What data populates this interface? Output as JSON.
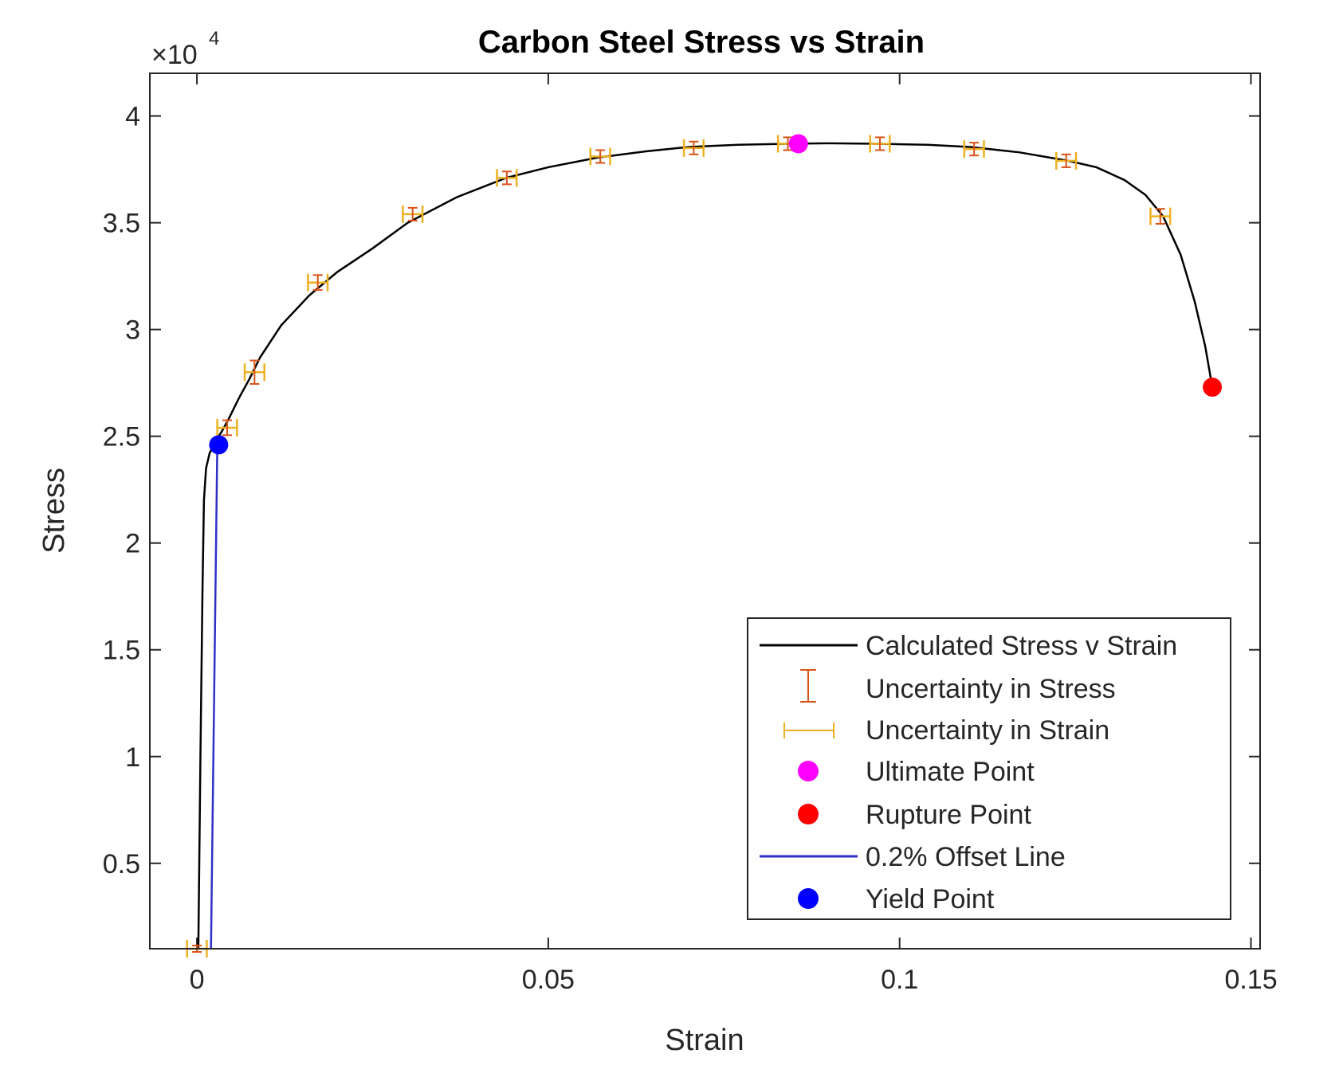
{
  "chart_data": {
    "type": "line",
    "title": "Carbon Steel Stress vs Strain",
    "xlabel": "Strain",
    "ylabel": "Stress",
    "y_exponent_label": "×10",
    "y_exponent_power": "4",
    "xlim": [
      -0.0067,
      0.1513
    ],
    "ylim": [
      1000,
      42000
    ],
    "x_ticks": [
      0,
      0.05,
      0.1,
      0.15
    ],
    "x_tick_labels": [
      "0",
      "0.05",
      "0.1",
      "0.15"
    ],
    "y_ticks": [
      5000,
      10000,
      15000,
      20000,
      25000,
      30000,
      35000,
      40000
    ],
    "y_tick_labels": [
      "0.5",
      "1",
      "1.5",
      "2",
      "2.5",
      "3",
      "3.5",
      "4"
    ],
    "grid": false,
    "legend_position": "bottom-right",
    "colors": {
      "curve": "#000000",
      "offset_line": "#3030c8",
      "stress_errorbar": "#d95319",
      "strain_errorbar": "#edb120",
      "ultimate": "#ff00ff",
      "rupture": "#ff0000",
      "yield": "#0000ff"
    },
    "series": [
      {
        "name": "Calculated Stress v Strain",
        "kind": "line",
        "x": [
          0.0002,
          0.0005,
          0.0008,
          0.001,
          0.0013,
          0.0018,
          0.0025,
          0.0035,
          0.0045,
          0.006,
          0.0075,
          0.009,
          0.012,
          0.016,
          0.02,
          0.025,
          0.03,
          0.037,
          0.044,
          0.05,
          0.057,
          0.064,
          0.07,
          0.077,
          0.084,
          0.09,
          0.097,
          0.104,
          0.11,
          0.117,
          0.124,
          0.128,
          0.132,
          0.135,
          0.1375,
          0.14,
          0.142,
          0.1435,
          0.1445
        ],
        "y": [
          1000,
          10000,
          18000,
          22000,
          23500,
          24200,
          24700,
          25200,
          25800,
          26800,
          27700,
          28700,
          30200,
          31600,
          32700,
          33800,
          35000,
          36200,
          37100,
          37600,
          38050,
          38350,
          38550,
          38650,
          38700,
          38720,
          38700,
          38650,
          38550,
          38300,
          37900,
          37600,
          37000,
          36300,
          35300,
          33500,
          31300,
          29200,
          27300
        ]
      },
      {
        "name": "Uncertainty in Stress",
        "kind": "yerror",
        "x": [
          0.0,
          0.0043,
          0.0082,
          0.0172,
          0.0307,
          0.0441,
          0.0574,
          0.0707,
          0.0841,
          0.0972,
          0.1106,
          0.1237,
          0.1371
        ],
        "y": [
          1000,
          25400,
          28000,
          32200,
          35400,
          37100,
          38100,
          38500,
          38700,
          38700,
          38450,
          37900,
          35300
        ],
        "err": [
          150,
          350,
          550,
          350,
          300,
          300,
          300,
          300,
          300,
          300,
          300,
          300,
          350
        ]
      },
      {
        "name": "Uncertainty in Strain",
        "kind": "xerror",
        "x": [
          0.0,
          0.0043,
          0.0082,
          0.0172,
          0.0307,
          0.0441,
          0.0574,
          0.0707,
          0.0841,
          0.0972,
          0.1106,
          0.1237,
          0.1371
        ],
        "y": [
          1000,
          25400,
          28000,
          32200,
          35400,
          37100,
          38100,
          38500,
          38700,
          38700,
          38450,
          37900,
          35300
        ],
        "err": [
          0.0014,
          0.0014,
          0.0014,
          0.0014,
          0.0014,
          0.0014,
          0.0014,
          0.0014,
          0.0014,
          0.0014,
          0.0014,
          0.0014,
          0.0014
        ]
      },
      {
        "name": "Ultimate Point",
        "kind": "marker",
        "x": [
          0.0856
        ],
        "y": [
          38700
        ]
      },
      {
        "name": "Rupture Point",
        "kind": "marker",
        "x": [
          0.1445
        ],
        "y": [
          27300
        ]
      },
      {
        "name": "0.2% Offset Line",
        "kind": "line",
        "x": [
          0.002,
          0.0029
        ],
        "y": [
          1000,
          24600
        ]
      },
      {
        "name": "Yield Point",
        "kind": "marker",
        "x": [
          0.0031
        ],
        "y": [
          24600
        ]
      }
    ]
  }
}
